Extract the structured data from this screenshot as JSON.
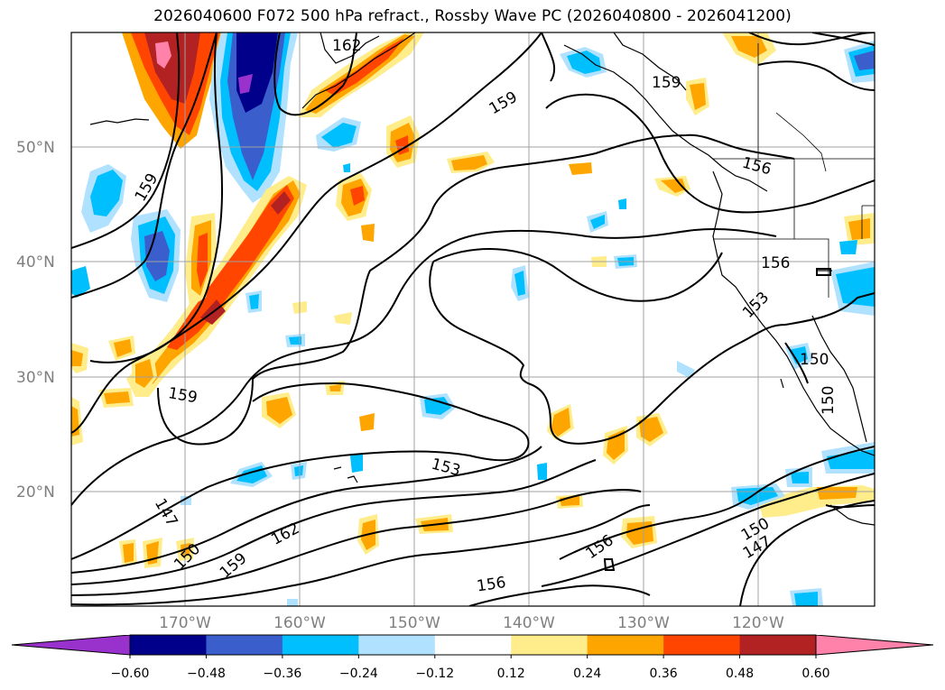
{
  "title": "2026040600 F072 500 hPa refract., Rossby Wave PC (2026040800 - 2026041200)",
  "map": {
    "lat_labels": [
      "50°N",
      "40°N",
      "30°N",
      "20°N"
    ],
    "lon_labels": [
      "170°W",
      "160°W",
      "150°W",
      "140°W",
      "130°W",
      "120°W"
    ],
    "contour_labels": [
      "162",
      "159",
      "159",
      "159",
      "159",
      "156",
      "156",
      "153",
      "150",
      "150",
      "153",
      "147",
      "150",
      "159",
      "162",
      "156",
      "156",
      "150",
      "147"
    ]
  },
  "colorbar": {
    "colors": [
      "#9932cc",
      "#00008b",
      "#3a5fcd",
      "#00bfff",
      "#b0e2ff",
      "#ffffff",
      "#ffec8b",
      "#ffa500",
      "#ff4500",
      "#b22222",
      "#ff82ab"
    ],
    "ticks": [
      "−0.60",
      "−0.48",
      "−0.36",
      "−0.24",
      "−0.12",
      "0.12",
      "0.24",
      "0.36",
      "0.48",
      "0.60"
    ]
  }
}
